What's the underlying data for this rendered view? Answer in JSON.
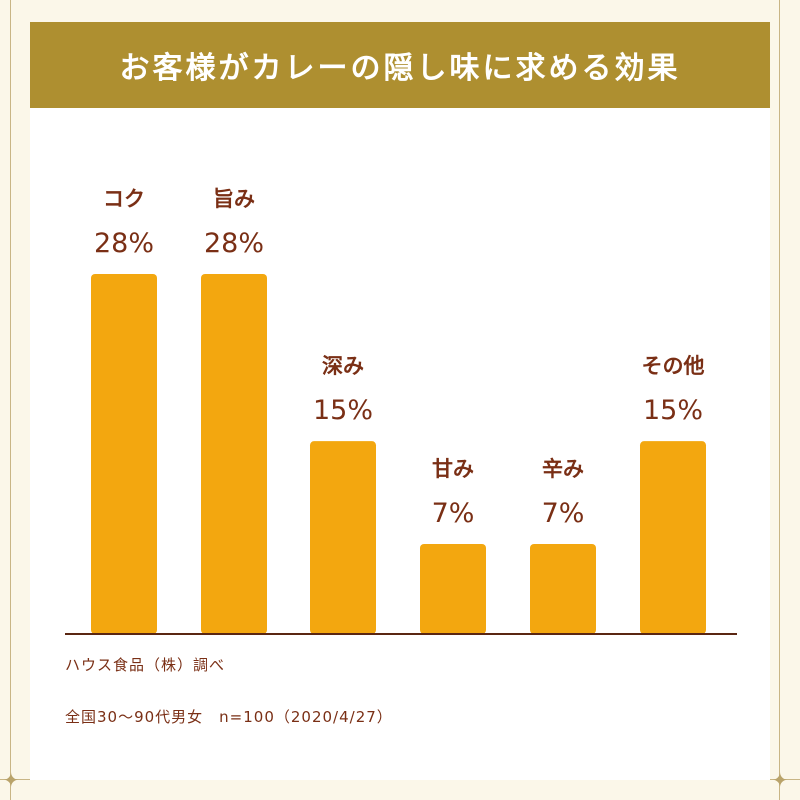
{
  "chart_data": {
    "type": "bar",
    "title": "お客様がカレーの隠し味に求める効果",
    "categories": [
      "コク",
      "旨み",
      "深み",
      "甘み",
      "辛み",
      "その他"
    ],
    "values": [
      28,
      28,
      15,
      7,
      7,
      15
    ],
    "value_labels": [
      "28%",
      "28%",
      "15%",
      "7%",
      "7%",
      "15%"
    ],
    "unit": "%",
    "ylim": [
      0,
      28
    ],
    "xlabel": "",
    "ylabel": "",
    "grid": false,
    "legend": "none",
    "colors": {
      "bar": "#f3a70f",
      "header_bg": "#ae8f30",
      "label_text": "#7a2f15",
      "axis": "#5a2612"
    }
  },
  "source": {
    "line1": "ハウス食品（株）調べ",
    "line2": "全国30～90代男女　n=100（2020/4/27）"
  }
}
